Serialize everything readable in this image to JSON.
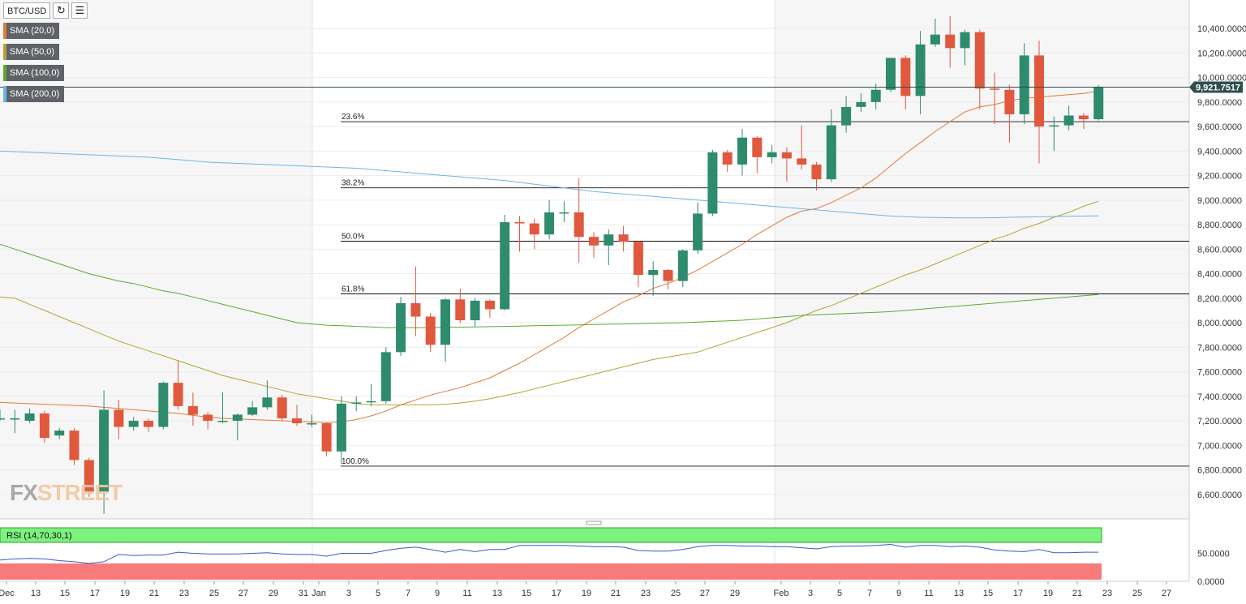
{
  "toolbar": {
    "symbol": "BTC/USD",
    "refresh_icon": "refresh-icon",
    "settings_icon": "indicator-settings-icon"
  },
  "logo": {
    "part1": "FX",
    "part2": "STREET"
  },
  "indicators": [
    {
      "label": "SMA (20,0)",
      "color": "#e07b39"
    },
    {
      "label": "SMA (50,0)",
      "color": "#b5a236"
    },
    {
      "label": "SMA (100,0)",
      "color": "#5aab2e"
    },
    {
      "label": "SMA (200,0)",
      "color": "#6bb6e6"
    }
  ],
  "rsi_label": "RSI (14,70,30,1)",
  "colors": {
    "up": "#2e8b6e",
    "down": "#e0583e",
    "rsi_high": "#7ef27e",
    "rsi_low": "#f77b7b",
    "rsi_line": "#3b5bbd",
    "price_tag": "#2f4f4f"
  },
  "chart_data": {
    "type": "candlestick",
    "title": "BTC/USD",
    "ylim": [
      6400,
      10500
    ],
    "yticks": [
      "10,400.0000",
      "10,200.0000",
      "10,000.0000",
      "9,800.0000",
      "9,600.0000",
      "9,400.0000",
      "9,200.0000",
      "9,000.0000",
      "8,800.0000",
      "8,600.0000",
      "8,400.0000",
      "8,200.0000",
      "8,000.0000",
      "7,800.0000",
      "7,600.0000",
      "7,400.0000",
      "7,200.0000",
      "7,000.0000",
      "6,800.0000",
      "6,600.0000"
    ],
    "xticks": [
      "Dec",
      "13",
      "15",
      "17",
      "19",
      "21",
      "23",
      "25",
      "27",
      "29",
      "31",
      "Jan",
      "3",
      "5",
      "7",
      "9",
      "11",
      "13",
      "15",
      "17",
      "19",
      "21",
      "23",
      "25",
      "27",
      "29",
      "Feb",
      "3",
      "5",
      "7",
      "9",
      "11",
      "13",
      "15",
      "17",
      "19",
      "21",
      "23",
      "25",
      "27"
    ],
    "last_price": "9,921.7517",
    "fibonacci": [
      {
        "label": "23.6%",
        "value": 9640
      },
      {
        "label": "38.2%",
        "value": 9100
      },
      {
        "label": "50.0%",
        "value": 8665
      },
      {
        "label": "61.8%",
        "value": 8235
      },
      {
        "label": "100.0%",
        "value": 6830
      }
    ],
    "candles": [
      {
        "date": "Dec 11",
        "o": 7220,
        "h": 7290,
        "l": 7200,
        "c": 7220
      },
      {
        "date": "Dec 12",
        "o": 7220,
        "h": 7290,
        "l": 7100,
        "c": 7220
      },
      {
        "date": "Dec 13",
        "o": 7200,
        "h": 7300,
        "l": 7180,
        "c": 7260
      },
      {
        "date": "Dec 14",
        "o": 7260,
        "h": 7280,
        "l": 7020,
        "c": 7060
      },
      {
        "date": "Dec 15",
        "o": 7080,
        "h": 7140,
        "l": 7050,
        "c": 7120
      },
      {
        "date": "Dec 16",
        "o": 7120,
        "h": 7140,
        "l": 6840,
        "c": 6880
      },
      {
        "date": "Dec 17",
        "o": 6880,
        "h": 6900,
        "l": 6580,
        "c": 6620
      },
      {
        "date": "Dec 18",
        "o": 6620,
        "h": 7450,
        "l": 6440,
        "c": 7290
      },
      {
        "date": "Dec 19",
        "o": 7290,
        "h": 7370,
        "l": 7050,
        "c": 7150
      },
      {
        "date": "Dec 20",
        "o": 7150,
        "h": 7230,
        "l": 7120,
        "c": 7200
      },
      {
        "date": "Dec 21",
        "o": 7200,
        "h": 7220,
        "l": 7110,
        "c": 7150
      },
      {
        "date": "Dec 22",
        "o": 7150,
        "h": 7520,
        "l": 7130,
        "c": 7510
      },
      {
        "date": "Dec 23",
        "o": 7510,
        "h": 7690,
        "l": 7290,
        "c": 7320
      },
      {
        "date": "Dec 24",
        "o": 7320,
        "h": 7430,
        "l": 7160,
        "c": 7250
      },
      {
        "date": "Dec 25",
        "o": 7250,
        "h": 7270,
        "l": 7130,
        "c": 7200
      },
      {
        "date": "Dec 26",
        "o": 7200,
        "h": 7430,
        "l": 7180,
        "c": 7200
      },
      {
        "date": "Dec 27",
        "o": 7200,
        "h": 7260,
        "l": 7040,
        "c": 7250
      },
      {
        "date": "Dec 28",
        "o": 7250,
        "h": 7360,
        "l": 7240,
        "c": 7310
      },
      {
        "date": "Dec 29",
        "o": 7310,
        "h": 7530,
        "l": 7290,
        "c": 7390
      },
      {
        "date": "Dec 30",
        "o": 7390,
        "h": 7410,
        "l": 7200,
        "c": 7220
      },
      {
        "date": "Dec 31",
        "o": 7220,
        "h": 7330,
        "l": 7160,
        "c": 7180
      },
      {
        "date": "Jan 1",
        "o": 7180,
        "h": 7250,
        "l": 7150,
        "c": 7180
      },
      {
        "date": "Jan 2",
        "o": 7180,
        "h": 7190,
        "l": 6910,
        "c": 6950
      },
      {
        "date": "Jan 3",
        "o": 6950,
        "h": 7400,
        "l": 6850,
        "c": 7340
      },
      {
        "date": "Jan 4",
        "o": 7340,
        "h": 7400,
        "l": 7280,
        "c": 7350
      },
      {
        "date": "Jan 5",
        "o": 7350,
        "h": 7500,
        "l": 7320,
        "c": 7360
      },
      {
        "date": "Jan 6",
        "o": 7360,
        "h": 7800,
        "l": 7340,
        "c": 7760
      },
      {
        "date": "Jan 7",
        "o": 7760,
        "h": 8210,
        "l": 7730,
        "c": 8160
      },
      {
        "date": "Jan 8",
        "o": 8160,
        "h": 8460,
        "l": 7890,
        "c": 8050
      },
      {
        "date": "Jan 9",
        "o": 8050,
        "h": 8080,
        "l": 7760,
        "c": 7820
      },
      {
        "date": "Jan 10",
        "o": 7820,
        "h": 8200,
        "l": 7680,
        "c": 8190
      },
      {
        "date": "Jan 11",
        "o": 8190,
        "h": 8280,
        "l": 8000,
        "c": 8020
      },
      {
        "date": "Jan 12",
        "o": 8020,
        "h": 8200,
        "l": 7970,
        "c": 8180
      },
      {
        "date": "Jan 13",
        "o": 8180,
        "h": 8190,
        "l": 8040,
        "c": 8110
      },
      {
        "date": "Jan 14",
        "o": 8110,
        "h": 8880,
        "l": 8100,
        "c": 8820
      },
      {
        "date": "Jan 15",
        "o": 8820,
        "h": 8870,
        "l": 8580,
        "c": 8810
      },
      {
        "date": "Jan 16",
        "o": 8810,
        "h": 8850,
        "l": 8600,
        "c": 8720
      },
      {
        "date": "Jan 17",
        "o": 8720,
        "h": 9000,
        "l": 8680,
        "c": 8900
      },
      {
        "date": "Jan 18",
        "o": 8900,
        "h": 8990,
        "l": 8820,
        "c": 8900
      },
      {
        "date": "Jan 19",
        "o": 8900,
        "h": 9180,
        "l": 8490,
        "c": 8700
      },
      {
        "date": "Jan 20",
        "o": 8700,
        "h": 8740,
        "l": 8530,
        "c": 8630
      },
      {
        "date": "Jan 21",
        "o": 8630,
        "h": 8760,
        "l": 8470,
        "c": 8720
      },
      {
        "date": "Jan 22",
        "o": 8720,
        "h": 8790,
        "l": 8580,
        "c": 8660
      },
      {
        "date": "Jan 23",
        "o": 8660,
        "h": 8670,
        "l": 8290,
        "c": 8390
      },
      {
        "date": "Jan 24",
        "o": 8390,
        "h": 8500,
        "l": 8220,
        "c": 8430
      },
      {
        "date": "Jan 25",
        "o": 8430,
        "h": 8440,
        "l": 8270,
        "c": 8340
      },
      {
        "date": "Jan 26",
        "o": 8340,
        "h": 8600,
        "l": 8290,
        "c": 8590
      },
      {
        "date": "Jan 27",
        "o": 8590,
        "h": 8980,
        "l": 8560,
        "c": 8890
      },
      {
        "date": "Jan 28",
        "o": 8890,
        "h": 9410,
        "l": 8870,
        "c": 9390
      },
      {
        "date": "Jan 29",
        "o": 9390,
        "h": 9410,
        "l": 9230,
        "c": 9290
      },
      {
        "date": "Jan 30",
        "o": 9290,
        "h": 9580,
        "l": 9200,
        "c": 9510
      },
      {
        "date": "Jan 31",
        "o": 9510,
        "h": 9520,
        "l": 9220,
        "c": 9350
      },
      {
        "date": "Feb 1",
        "o": 9350,
        "h": 9450,
        "l": 9300,
        "c": 9390
      },
      {
        "date": "Feb 2",
        "o": 9390,
        "h": 9430,
        "l": 9150,
        "c": 9340
      },
      {
        "date": "Feb 3",
        "o": 9340,
        "h": 9610,
        "l": 9250,
        "c": 9290
      },
      {
        "date": "Feb 4",
        "o": 9290,
        "h": 9310,
        "l": 9080,
        "c": 9170
      },
      {
        "date": "Feb 5",
        "o": 9170,
        "h": 9740,
        "l": 9150,
        "c": 9610
      },
      {
        "date": "Feb 6",
        "o": 9610,
        "h": 9850,
        "l": 9550,
        "c": 9760
      },
      {
        "date": "Feb 7",
        "o": 9760,
        "h": 9870,
        "l": 9720,
        "c": 9800
      },
      {
        "date": "Feb 8",
        "o": 9800,
        "h": 9950,
        "l": 9740,
        "c": 9900
      },
      {
        "date": "Feb 9",
        "o": 9900,
        "h": 10160,
        "l": 9880,
        "c": 10160
      },
      {
        "date": "Feb 10",
        "o": 10160,
        "h": 10180,
        "l": 9740,
        "c": 9850
      },
      {
        "date": "Feb 11",
        "o": 9850,
        "h": 10380,
        "l": 9700,
        "c": 10270
      },
      {
        "date": "Feb 12",
        "o": 10270,
        "h": 10480,
        "l": 10250,
        "c": 10350
      },
      {
        "date": "Feb 13",
        "o": 10350,
        "h": 10500,
        "l": 10080,
        "c": 10240
      },
      {
        "date": "Feb 14",
        "o": 10240,
        "h": 10390,
        "l": 10100,
        "c": 10370
      },
      {
        "date": "Feb 15",
        "o": 10370,
        "h": 10390,
        "l": 9740,
        "c": 9910
      },
      {
        "date": "Feb 16",
        "o": 9910,
        "h": 10040,
        "l": 9620,
        "c": 9900
      },
      {
        "date": "Feb 17",
        "o": 9900,
        "h": 9940,
        "l": 9470,
        "c": 9700
      },
      {
        "date": "Feb 18",
        "o": 9700,
        "h": 10280,
        "l": 9620,
        "c": 10180
      },
      {
        "date": "Feb 19",
        "o": 10180,
        "h": 10300,
        "l": 9300,
        "c": 9600
      },
      {
        "date": "Feb 20",
        "o": 9600,
        "h": 9680,
        "l": 9400,
        "c": 9610
      },
      {
        "date": "Feb 21",
        "o": 9610,
        "h": 9770,
        "l": 9570,
        "c": 9690
      },
      {
        "date": "Feb 22",
        "o": 9690,
        "h": 9710,
        "l": 9580,
        "c": 9660
      },
      {
        "date": "Feb 23",
        "o": 9660,
        "h": 9940,
        "l": 9650,
        "c": 9922
      }
    ],
    "sma": [
      {
        "name": "SMA (20,0)",
        "values": [
          7350,
          7345,
          7340,
          7335,
          7330,
          7325,
          7320,
          7310,
          7300,
          7290,
          7280,
          7270,
          7260,
          7245,
          7230,
          7220,
          7215,
          7210,
          7205,
          7200,
          7195,
          7190,
          7185,
          7190,
          7210,
          7240,
          7280,
          7330,
          7370,
          7410,
          7440,
          7470,
          7510,
          7550,
          7610,
          7670,
          7740,
          7810,
          7880,
          7960,
          8030,
          8100,
          8170,
          8220,
          8280,
          8320,
          8370,
          8430,
          8500,
          8570,
          8640,
          8720,
          8790,
          8860,
          8910,
          8930,
          8980,
          9040,
          9100,
          9180,
          9280,
          9380,
          9470,
          9560,
          9640,
          9720,
          9760,
          9780,
          9810,
          9830,
          9840,
          9850,
          9860,
          9870,
          9890
        ]
      },
      {
        "name": "SMA (50,0)",
        "values": [
          8210,
          8200,
          8150,
          8100,
          8050,
          8000,
          7950,
          7900,
          7850,
          7810,
          7770,
          7730,
          7690,
          7650,
          7610,
          7570,
          7540,
          7510,
          7480,
          7450,
          7420,
          7400,
          7380,
          7360,
          7340,
          7330,
          7330,
          7330,
          7330,
          7330,
          7335,
          7345,
          7360,
          7380,
          7405,
          7430,
          7460,
          7490,
          7520,
          7550,
          7580,
          7610,
          7640,
          7670,
          7700,
          7720,
          7740,
          7760,
          7800,
          7840,
          7880,
          7920,
          7960,
          8000,
          8050,
          8100,
          8140,
          8190,
          8240,
          8290,
          8340,
          8390,
          8430,
          8480,
          8530,
          8580,
          8630,
          8680,
          8720,
          8770,
          8810,
          8860,
          8900,
          8950,
          8990
        ]
      },
      {
        "name": "SMA (100,0)",
        "values": [
          8640,
          8600,
          8560,
          8520,
          8480,
          8440,
          8400,
          8370,
          8340,
          8320,
          8290,
          8260,
          8240,
          8210,
          8180,
          8150,
          8120,
          8090,
          8060,
          8030,
          8000,
          7990,
          7980,
          7975,
          7970,
          7965,
          7960,
          7960,
          7960,
          7960,
          7962,
          7964,
          7966,
          7968,
          7970,
          7972,
          7975,
          7978,
          7980,
          7982,
          7985,
          7988,
          7990,
          7992,
          7995,
          7998,
          8000,
          8005,
          8010,
          8015,
          8020,
          8030,
          8040,
          8050,
          8060,
          8065,
          8070,
          8075,
          8080,
          8085,
          8090,
          8100,
          8110,
          8120,
          8130,
          8140,
          8150,
          8160,
          8170,
          8180,
          8190,
          8200,
          8210,
          8220,
          8230
        ]
      },
      {
        "name": "SMA (200,0)",
        "values": [
          9400,
          9395,
          9390,
          9385,
          9380,
          9375,
          9370,
          9365,
          9360,
          9355,
          9350,
          9340,
          9330,
          9320,
          9310,
          9305,
          9300,
          9295,
          9290,
          9285,
          9280,
          9275,
          9270,
          9265,
          9260,
          9250,
          9240,
          9230,
          9220,
          9210,
          9200,
          9190,
          9180,
          9170,
          9160,
          9145,
          9130,
          9115,
          9100,
          9085,
          9070,
          9060,
          9050,
          9040,
          9030,
          9020,
          9010,
          9000,
          8990,
          8980,
          8970,
          8960,
          8950,
          8940,
          8930,
          8920,
          8910,
          8900,
          8890,
          8880,
          8870,
          8865,
          8860,
          8858,
          8856,
          8855,
          8855,
          8857,
          8860,
          8862,
          8864,
          8866,
          8868,
          8870,
          8872
        ]
      }
    ],
    "rsi": {
      "ylim": [
        0,
        100
      ],
      "yticks": [
        "50.0000",
        "0.0000"
      ],
      "values": [
        38,
        40,
        41,
        40,
        37,
        35,
        32,
        35,
        48,
        46,
        47,
        47,
        52,
        50,
        49,
        49,
        49,
        50,
        51,
        49,
        48,
        48,
        45,
        50,
        50,
        50,
        55,
        59,
        61,
        57,
        52,
        57,
        53,
        57,
        57,
        64,
        64,
        64,
        64,
        63,
        62,
        62,
        61,
        55,
        54,
        54,
        57,
        62,
        64,
        64,
        63,
        63,
        62,
        62,
        60,
        58,
        62,
        63,
        63,
        64,
        66,
        61,
        64,
        64,
        62,
        63,
        61,
        56,
        54,
        53,
        57,
        51,
        51,
        52,
        52
      ]
    }
  }
}
